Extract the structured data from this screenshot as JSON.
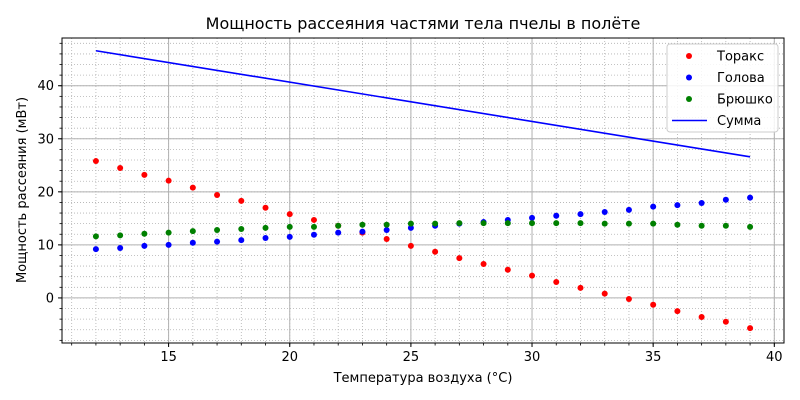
{
  "chart_data": {
    "type": "scatter",
    "title": "Мощность рассеяния частями тела пчелы в полёте",
    "xlabel": "Температура воздуха (°C)",
    "ylabel": "Мощность рассеяния (мВт)",
    "xlim": [
      10.6,
      40.4
    ],
    "ylim": [
      -8.5,
      49.0
    ],
    "xticks": [
      15,
      20,
      25,
      30,
      35,
      40
    ],
    "yticks": [
      0,
      10,
      20,
      30,
      40
    ],
    "grid": true,
    "minor_grid": true,
    "legend_position": "upper right",
    "x": [
      12,
      13,
      14,
      15,
      16,
      17,
      18,
      19,
      20,
      21,
      22,
      23,
      24,
      25,
      26,
      27,
      28,
      29,
      30,
      31,
      32,
      33,
      34,
      35,
      36,
      37,
      38,
      39
    ],
    "series": [
      {
        "name": "Торакс",
        "kind": "scatter",
        "color": "#ff0000",
        "values": [
          25.8,
          24.5,
          23.2,
          22.1,
          20.8,
          19.4,
          18.3,
          17.0,
          15.8,
          14.7,
          13.6,
          12.3,
          11.1,
          9.8,
          8.7,
          7.5,
          6.4,
          5.3,
          4.2,
          3.0,
          1.9,
          0.8,
          -0.2,
          -1.3,
          -2.5,
          -3.6,
          -4.5,
          -5.7
        ]
      },
      {
        "name": "Голова",
        "kind": "scatter",
        "color": "#0000ff",
        "values": [
          9.2,
          9.4,
          9.8,
          10.0,
          10.4,
          10.6,
          10.9,
          11.3,
          11.5,
          11.9,
          12.3,
          12.5,
          12.8,
          13.2,
          13.6,
          14.0,
          14.3,
          14.7,
          15.1,
          15.5,
          15.8,
          16.2,
          16.6,
          17.2,
          17.5,
          17.9,
          18.5,
          18.9
        ]
      },
      {
        "name": "Брюшко",
        "kind": "scatter",
        "color": "#008000",
        "values": [
          11.6,
          11.8,
          12.1,
          12.3,
          12.6,
          12.8,
          13.0,
          13.2,
          13.4,
          13.4,
          13.6,
          13.8,
          13.8,
          14.0,
          14.0,
          14.1,
          14.1,
          14.1,
          14.1,
          14.1,
          14.1,
          14.0,
          14.0,
          14.0,
          13.8,
          13.6,
          13.6,
          13.4
        ]
      },
      {
        "name": "Сумма",
        "kind": "line",
        "color": "#0000ff",
        "values": [
          46.6,
          45.7,
          45.1,
          44.4,
          43.8,
          42.8,
          42.2,
          41.5,
          40.7,
          40.0,
          39.5,
          38.6,
          37.7,
          37.0,
          36.3,
          35.6,
          34.8,
          34.1,
          33.4,
          32.6,
          31.8,
          31.0,
          30.4,
          29.9,
          28.8,
          27.9,
          27.6,
          26.6
        ]
      }
    ]
  }
}
